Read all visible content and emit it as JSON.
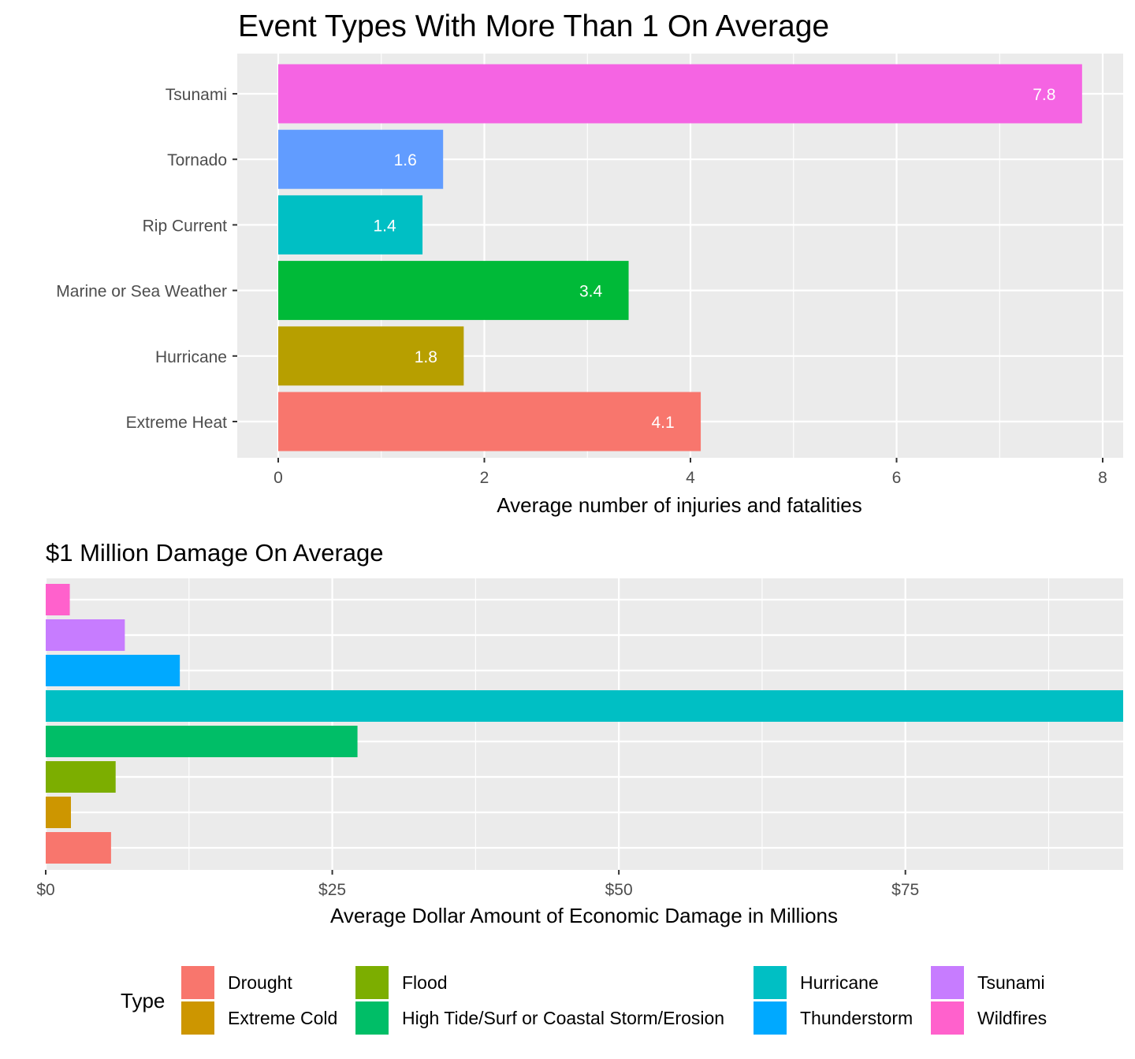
{
  "chart_data": [
    {
      "type": "bar",
      "orientation": "horizontal",
      "title": "Event Types With More Than 1 On Average",
      "xlabel": "Average number of injuries and fatalities",
      "ylabel": "",
      "xlim": [
        0,
        8
      ],
      "x_ticks": [
        "0",
        "2",
        "4",
        "6",
        "8"
      ],
      "categories": [
        "Extreme Heat",
        "Hurricane",
        "Marine or Sea Weather",
        "Rip Current",
        "Tornado",
        "Tsunami"
      ],
      "values": [
        4.1,
        1.8,
        3.4,
        1.4,
        1.6,
        7.8
      ],
      "value_labels": [
        "4.1",
        "1.8",
        "3.4",
        "1.4",
        "1.6",
        "7.8"
      ],
      "colors": [
        "#F8766D",
        "#B79F00",
        "#00BA38",
        "#00BFC4",
        "#619CFF",
        "#F564E3"
      ],
      "grid": true,
      "legend": "none"
    },
    {
      "type": "bar",
      "orientation": "horizontal",
      "title": "$1 Million Damage On Average",
      "xlabel": "Average Dollar Amount of Economic Damage in Millions",
      "ylabel": "",
      "xlim": [
        0,
        94
      ],
      "x_ticks": [
        "$0",
        "$25",
        "$50",
        "$75"
      ],
      "categories": [
        "Drought",
        "Extreme Cold",
        "Flood",
        "High Tide/Surf or Coastal Storm/Erosion",
        "Hurricane",
        "Thunderstorm",
        "Tsunami",
        "Wildfires"
      ],
      "values": [
        5.7,
        2.2,
        6.1,
        27.2,
        94.0,
        11.7,
        6.9,
        2.1
      ],
      "colors": [
        "#F8766D",
        "#CD9600",
        "#7CAE00",
        "#00BE67",
        "#00BFC4",
        "#00A9FF",
        "#C77CFF",
        "#FF61CC"
      ],
      "grid": true,
      "legend": "bottom",
      "legend_title": "Type"
    }
  ]
}
